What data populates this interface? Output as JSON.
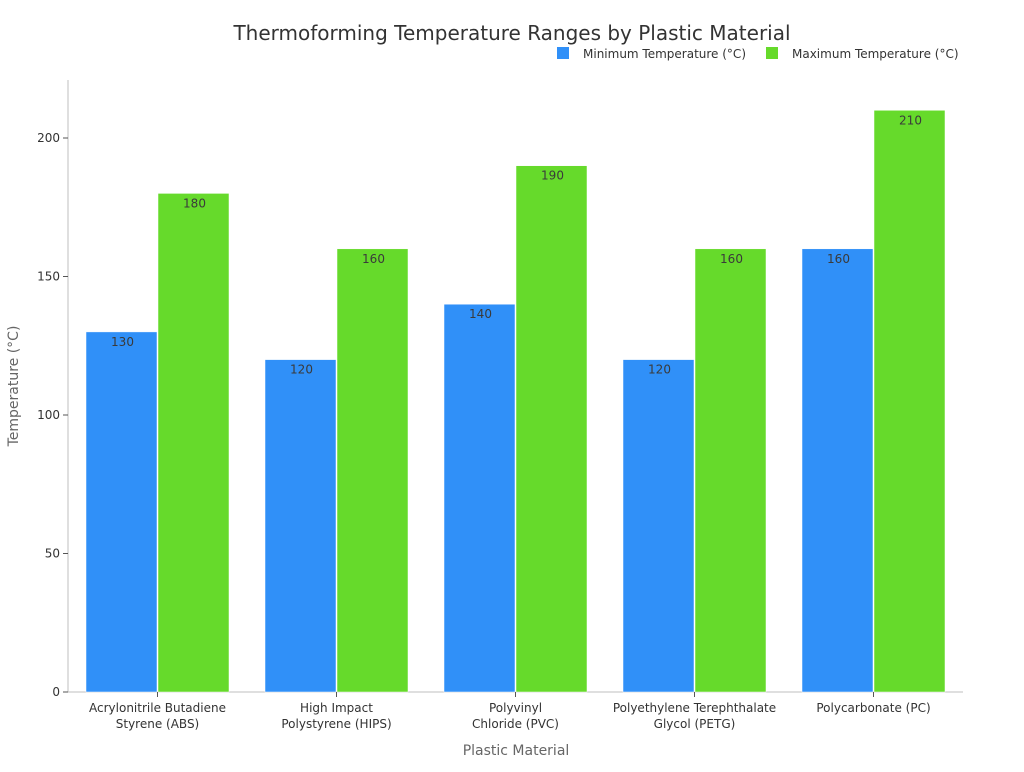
{
  "chart_data": {
    "type": "bar",
    "title": "Thermoforming Temperature Ranges by Plastic Material",
    "xlabel": "Plastic Material",
    "ylabel": "Temperature (°C)",
    "ylim": [
      0,
      220
    ],
    "yticks": [
      0,
      50,
      100,
      150,
      200
    ],
    "grid": false,
    "legend_position": "top-right",
    "categories": [
      [
        "Acrylonitrile Butadiene",
        "Styrene (ABS)"
      ],
      [
        "High Impact",
        "Polystyrene (HIPS)"
      ],
      [
        "Polyvinyl",
        "Chloride (PVC)"
      ],
      [
        "Polyethylene Terephthalate",
        "Glycol (PETG)"
      ],
      [
        "Polycarbonate (PC)"
      ]
    ],
    "series": [
      {
        "name": "Minimum Temperature (°C)",
        "color": "#3090f8",
        "values": [
          130,
          120,
          140,
          120,
          160
        ]
      },
      {
        "name": "Maximum Temperature (°C)",
        "color": "#66da2b",
        "values": [
          180,
          160,
          190,
          160,
          210
        ]
      }
    ],
    "data_label_color": "#3a3a3a",
    "axis_color": "#bfbfbf",
    "text_color": "#333333",
    "axis_label_color": "#666666"
  }
}
